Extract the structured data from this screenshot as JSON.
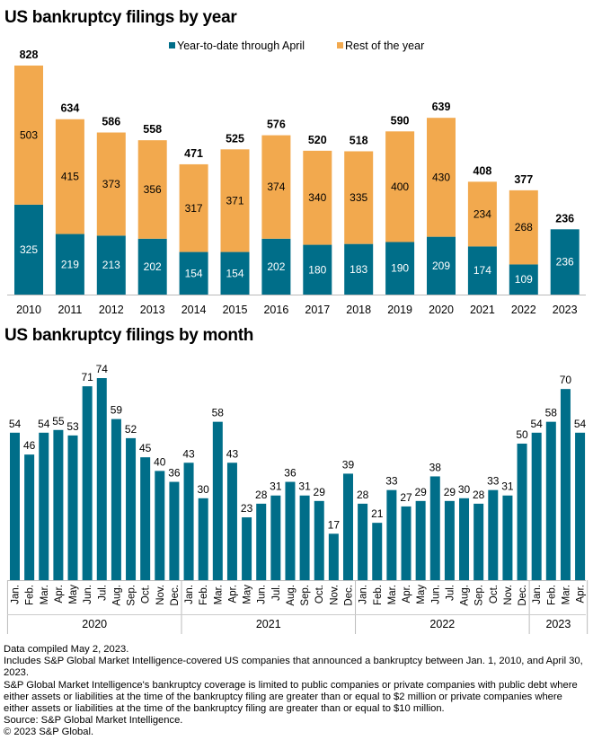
{
  "chart_data": [
    {
      "type": "bar",
      "stacked": true,
      "title": "US bankruptcy filings by year",
      "categories": [
        "2010",
        "2011",
        "2012",
        "2013",
        "2014",
        "2015",
        "2016",
        "2017",
        "2018",
        "2019",
        "2020",
        "2021",
        "2022",
        "2023"
      ],
      "series": [
        {
          "name": "Year-to-date through April",
          "color": "#006e89",
          "values": [
            325,
            219,
            213,
            202,
            154,
            154,
            202,
            180,
            183,
            190,
            209,
            174,
            109,
            236
          ]
        },
        {
          "name": "Rest of the year",
          "color": "#f2a94e",
          "values": [
            503,
            415,
            373,
            356,
            317,
            371,
            374,
            340,
            335,
            400,
            430,
            234,
            268,
            null
          ]
        }
      ],
      "totals": [
        828,
        634,
        586,
        558,
        471,
        525,
        576,
        520,
        518,
        590,
        639,
        408,
        377,
        236
      ],
      "legend": "top-center",
      "grid": false
    },
    {
      "type": "bar",
      "title": "US bankruptcy filings by month",
      "color": "#006e89",
      "groups": [
        {
          "label": "2020",
          "months": [
            "Jan.",
            "Feb.",
            "Mar.",
            "Apr.",
            "May",
            "Jun.",
            "Jul.",
            "Aug.",
            "Sep.",
            "Oct.",
            "Nov.",
            "Dec."
          ],
          "values": [
            54,
            46,
            54,
            55,
            53,
            71,
            74,
            59,
            52,
            45,
            40,
            36
          ]
        },
        {
          "label": "2021",
          "months": [
            "Jan.",
            "Feb.",
            "Mar.",
            "Apr.",
            "May",
            "Jun.",
            "Jul.",
            "Aug.",
            "Sep.",
            "Oct.",
            "Nov.",
            "Dec."
          ],
          "values": [
            43,
            30,
            58,
            43,
            23,
            28,
            31,
            36,
            31,
            29,
            17,
            39
          ]
        },
        {
          "label": "2022",
          "months": [
            "Jan.",
            "Feb.",
            "Mar.",
            "Apr.",
            "May",
            "Jun.",
            "Jul.",
            "Aug.",
            "Sep.",
            "Oct.",
            "Nov.",
            "Dec."
          ],
          "values": [
            28,
            21,
            33,
            27,
            29,
            38,
            29,
            30,
            28,
            33,
            31,
            50
          ]
        },
        {
          "label": "2023",
          "months": [
            "Jan.",
            "Feb.",
            "Mar.",
            "Apr."
          ],
          "values": [
            54,
            58,
            70,
            54
          ]
        }
      ],
      "grid": false
    }
  ],
  "notes": [
    "Data compiled May 2, 2023.",
    "Includes S&P Global Market Intelligence-covered US companies that announced a bankruptcy between Jan. 1, 2010, and April 30, 2023.",
    "S&P Global Market Intelligence's bankruptcy coverage is limited to public companies or private companies with public debt where either assets or liabilities at the time of the bankruptcy filing are greater than or equal to $2 million or private companies where either assets or liabilities at the time of the bankruptcy filing are greater than or equal to $10 million.",
    "Source: S&P Global Market Intelligence.",
    "© 2023 S&P Global."
  ]
}
